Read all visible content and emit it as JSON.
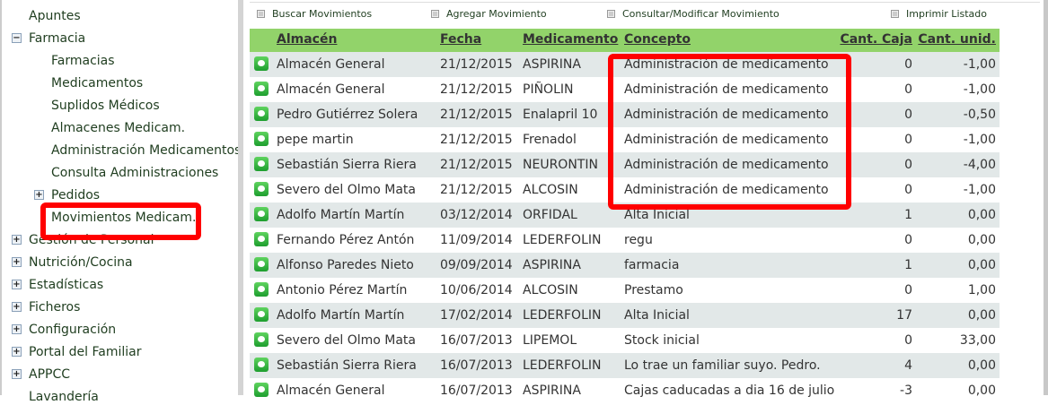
{
  "sidebar": {
    "items": [
      {
        "label": "Apuntes",
        "toggle": ""
      },
      {
        "label": "Farmacia",
        "toggle": "minus"
      },
      {
        "label": "Farmacias",
        "toggle": ""
      },
      {
        "label": "Medicamentos",
        "toggle": ""
      },
      {
        "label": "Suplidos Médicos",
        "toggle": ""
      },
      {
        "label": "Almacenes Medicam.",
        "toggle": ""
      },
      {
        "label": "Administración Medicamentos",
        "toggle": ""
      },
      {
        "label": "Consulta Administraciones",
        "toggle": ""
      },
      {
        "label": "Pedidos",
        "toggle": "plus"
      },
      {
        "label": "Movimientos Medicam.",
        "toggle": "",
        "highlighted": true
      },
      {
        "label": "Gestión de Personal",
        "toggle": "plus"
      },
      {
        "label": "Nutrición/Cocina",
        "toggle": "plus"
      },
      {
        "label": "Estadísticas",
        "toggle": "plus"
      },
      {
        "label": "Ficheros",
        "toggle": "plus"
      },
      {
        "label": "Configuración",
        "toggle": "plus"
      },
      {
        "label": "Portal del Familiar",
        "toggle": "plus"
      },
      {
        "label": "APPCC",
        "toggle": "plus"
      },
      {
        "label": "Lavandería",
        "toggle": ""
      }
    ]
  },
  "actions": {
    "search": "Buscar Movimientos",
    "add": "Agregar Movimiento",
    "edit": "Consultar/Modificar Movimiento",
    "print": "Imprimir Listado"
  },
  "table": {
    "headers": [
      "Almacén",
      "Fecha",
      "Medicamento",
      "Concepto",
      "Cant. Caja",
      "Cant. unid."
    ],
    "rows": [
      [
        "Almacén General",
        "21/12/2015",
        "ASPIRINA",
        "Administración de medicamento",
        "0",
        "-1,00"
      ],
      [
        "Almacén General",
        "21/12/2015",
        "PIÑOLIN",
        "Administración de medicamento",
        "0",
        "-1,00"
      ],
      [
        "Pedro Gutiérrez Solera",
        "21/12/2015",
        "Enalapril 10",
        "Administración de medicamento",
        "0",
        "-0,50"
      ],
      [
        "pepe martin",
        "21/12/2015",
        "Frenadol",
        "Administración de medicamento",
        "0",
        "-1,00"
      ],
      [
        "Sebastián Sierra Riera",
        "21/12/2015",
        "NEURONTIN",
        "Administración de medicamento",
        "0",
        "-4,00"
      ],
      [
        "Severo del Olmo Mata",
        "21/12/2015",
        "ALCOSIN",
        "Administración de medicamento",
        "0",
        "-1,00"
      ],
      [
        "Adolfo Martín Martín",
        "03/12/2014",
        "ORFIDAL",
        "Alta Inicial",
        "1",
        "0,00"
      ],
      [
        "Fernando Pérez Antón",
        "11/09/2014",
        "LEDERFOLIN",
        "regu",
        "0",
        "0,00"
      ],
      [
        "Alfonso Paredes Nieto",
        "09/09/2014",
        "ASPIRINA",
        "farmacia",
        "1",
        "0,00"
      ],
      [
        "Antonio Pérez Martín",
        "10/06/2014",
        "ALCOSIN",
        "Prestamo",
        "0",
        "1,00"
      ],
      [
        "Adolfo Martín Martín",
        "17/02/2014",
        "LEDERFOLIN",
        "Alta Inicial",
        "17",
        "0,00"
      ],
      [
        "Severo del Olmo Mata",
        "16/07/2013",
        "LIPEMOL",
        "Stock inicial",
        "0",
        "33,00"
      ],
      [
        "Sebastián Sierra Riera",
        "16/07/2013",
        "LEDERFOLIN",
        "Lo trae un familiar suyo. Pedro.",
        "4",
        "0,00"
      ],
      [
        "Almacén General",
        "16/07/2013",
        "ASPIRINA",
        "Cajas caducadas a dia 16 de julio",
        "-3",
        "0,00"
      ]
    ]
  },
  "colors": {
    "header": "#92d36a",
    "row_alt": "#e2e8e8",
    "highlight": "#ff0000",
    "link": "#1f3d1f"
  }
}
